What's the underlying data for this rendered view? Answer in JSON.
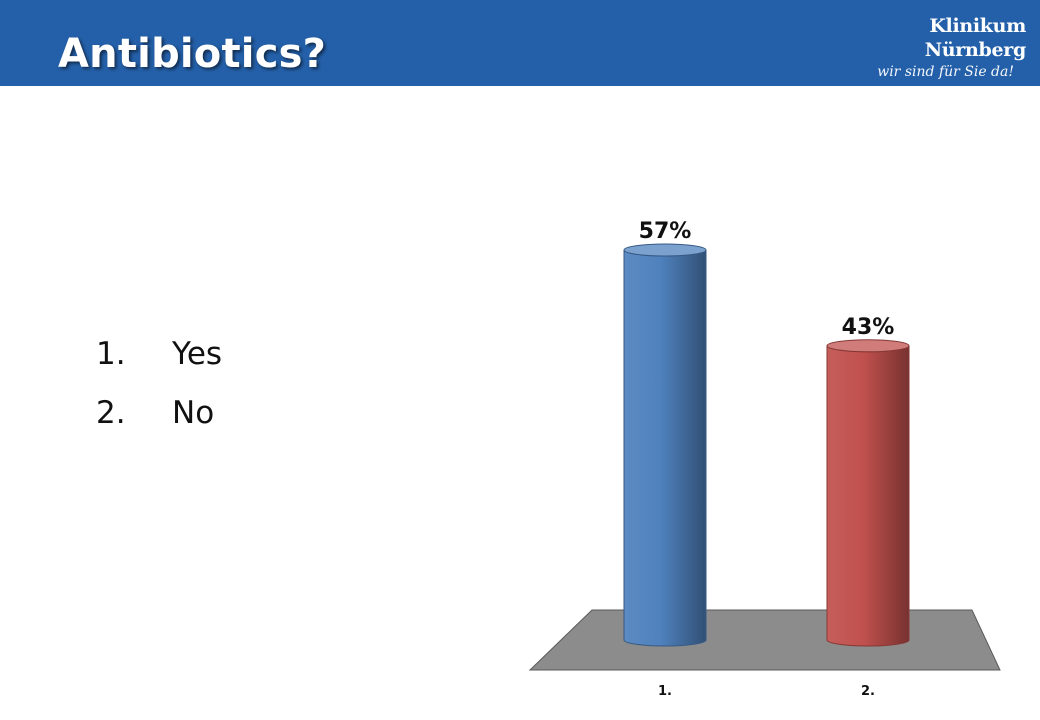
{
  "slide": {
    "title": "Antibiotics?",
    "brand": {
      "name": "Klinikum Nürnberg",
      "tagline": "wir sind für Sie da!"
    },
    "options": [
      {
        "number": "1.",
        "label": "Yes"
      },
      {
        "number": "2.",
        "label": "No"
      }
    ]
  },
  "chart_data": {
    "type": "bar",
    "style": "3d-cylinder",
    "categories": [
      "1.",
      "2."
    ],
    "values": [
      57,
      43
    ],
    "value_labels": [
      "57%",
      "43%"
    ],
    "ylim": [
      0,
      57
    ],
    "legend": "none",
    "grid": false,
    "colors": [
      "#4f81bd",
      "#c0504d"
    ],
    "floor_color": "#8c8c8c"
  }
}
